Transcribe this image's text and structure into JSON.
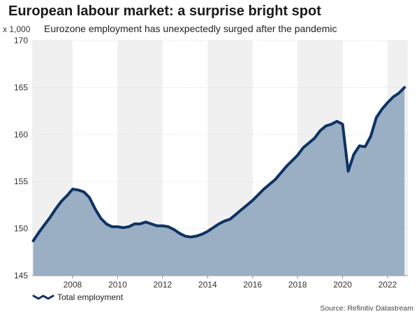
{
  "chart_data": {
    "type": "area",
    "title": "European labour market: a surprise bright spot",
    "subtitle": "Eurozone employment has unexpectedly surged after the pandemic",
    "ylabel": "x 1,000",
    "ylim": [
      145,
      170
    ],
    "xlim": [
      2006.2,
      2022.9
    ],
    "yticks": [
      145,
      150,
      155,
      160,
      165,
      170
    ],
    "xticks": [
      "2008",
      "2010",
      "2012",
      "2014",
      "2016",
      "2018",
      "2020",
      "2022"
    ],
    "shaded_bands": [
      [
        2006.2,
        2008
      ],
      [
        2010,
        2012
      ],
      [
        2014,
        2016
      ],
      [
        2018,
        2020
      ],
      [
        2022,
        2022.9
      ]
    ],
    "grid": true,
    "legend_position": "bottom-left",
    "series": [
      {
        "name": "Total employment",
        "x": [
          2006.25,
          2006.5,
          2006.75,
          2007.0,
          2007.25,
          2007.5,
          2007.75,
          2008.0,
          2008.25,
          2008.5,
          2008.75,
          2009.0,
          2009.25,
          2009.5,
          2009.75,
          2010.0,
          2010.25,
          2010.5,
          2010.75,
          2011.0,
          2011.25,
          2011.5,
          2011.75,
          2012.0,
          2012.25,
          2012.5,
          2012.75,
          2013.0,
          2013.25,
          2013.5,
          2013.75,
          2014.0,
          2014.25,
          2014.5,
          2014.75,
          2015.0,
          2015.25,
          2015.5,
          2015.75,
          2016.0,
          2016.25,
          2016.5,
          2016.75,
          2017.0,
          2017.25,
          2017.5,
          2017.75,
          2018.0,
          2018.25,
          2018.5,
          2018.75,
          2019.0,
          2019.25,
          2019.5,
          2019.75,
          2020.0,
          2020.25,
          2020.5,
          2020.75,
          2021.0,
          2021.25,
          2021.5,
          2021.75,
          2022.0,
          2022.25,
          2022.5,
          2022.75
        ],
        "values": [
          148.7,
          149.6,
          150.4,
          151.2,
          152.1,
          152.9,
          153.5,
          154.2,
          154.1,
          153.9,
          153.3,
          152.1,
          151.1,
          150.5,
          150.2,
          150.2,
          150.1,
          150.2,
          150.5,
          150.5,
          150.7,
          150.5,
          150.3,
          150.3,
          150.2,
          149.9,
          149.5,
          149.2,
          149.1,
          149.2,
          149.4,
          149.7,
          150.1,
          150.5,
          150.8,
          151.0,
          151.5,
          152.0,
          152.5,
          153.0,
          153.6,
          154.2,
          154.7,
          155.2,
          155.9,
          156.6,
          157.2,
          157.8,
          158.6,
          159.1,
          159.6,
          160.4,
          160.9,
          161.1,
          161.4,
          161.1,
          156.1,
          157.9,
          158.8,
          158.7,
          159.8,
          161.8,
          162.7,
          163.4,
          164.0,
          164.4,
          165.0
        ]
      }
    ],
    "colors": {
      "line": "#0d3363",
      "fill": "#9aaec4",
      "band": "#f0f0f0",
      "grid": "#e2e2e2"
    }
  },
  "legend": {
    "label": "Total employment"
  },
  "source": "Source: Refinitiv Datastream"
}
